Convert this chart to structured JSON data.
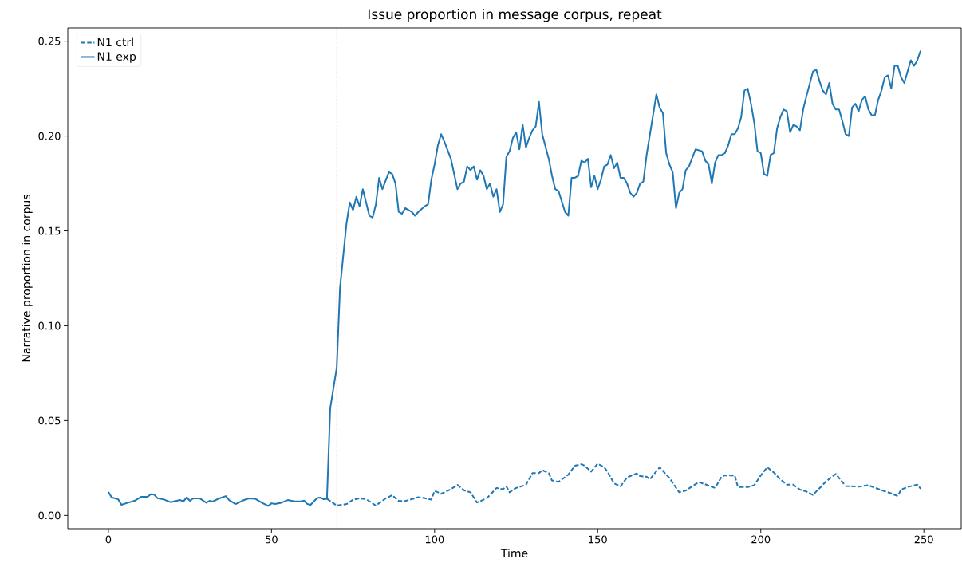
{
  "chart_data": {
    "type": "line",
    "title": "Issue proportion in message corpus, repeat",
    "xlabel": "Time",
    "ylabel": "Narrative proportion in corpus",
    "xlim": [
      -12.45,
      261.45
    ],
    "ylim": [
      -0.007,
      0.257
    ],
    "xticks": [
      0,
      50,
      100,
      150,
      200,
      250
    ],
    "yticks": [
      {
        "value": 0,
        "label": "0.00"
      },
      {
        "value": 0.05,
        "label": "0.05"
      },
      {
        "value": 0.1,
        "label": "0.10"
      },
      {
        "value": 0.15,
        "label": "0.15"
      },
      {
        "value": 0.2,
        "label": "0.20"
      },
      {
        "value": 0.25,
        "label": "0.25"
      }
    ],
    "grid": false,
    "legend": "top left",
    "marker": "none",
    "ref_lines": [
      {
        "axis": "x",
        "value": 70,
        "color": "#ff4040",
        "line_style": "dotted"
      }
    ],
    "series": [
      {
        "name": "N1 ctrl",
        "color": "#1f77b4",
        "line_style": "dashed",
        "x": [
          67,
          70,
          73,
          75,
          77,
          79,
          82,
          85,
          87,
          89,
          91,
          95,
          97,
          99,
          100,
          102,
          105,
          107,
          109,
          111,
          113,
          116,
          119,
          121,
          122,
          123,
          125,
          128,
          130,
          132,
          133,
          135,
          136,
          138,
          141,
          143,
          145,
          146,
          148,
          150,
          152,
          153,
          155,
          157,
          159,
          161,
          162,
          163,
          165,
          166,
          169,
          172,
          175,
          177,
          181,
          186,
          188,
          189,
          192,
          193,
          196,
          198,
          200,
          202,
          204,
          206,
          208,
          210,
          212,
          214,
          216,
          220,
          223,
          226,
          230,
          233,
          237,
          240,
          242,
          243,
          245,
          248,
          249
        ],
        "values": [
          0.0088,
          0.0052,
          0.006,
          0.0083,
          0.009,
          0.0086,
          0.0052,
          0.009,
          0.0107,
          0.0076,
          0.0076,
          0.0096,
          0.0091,
          0.0083,
          0.013,
          0.0114,
          0.0138,
          0.0161,
          0.0133,
          0.0122,
          0.0068,
          0.009,
          0.0145,
          0.0138,
          0.0153,
          0.0122,
          0.0145,
          0.0161,
          0.0223,
          0.0223,
          0.0239,
          0.0223,
          0.0184,
          0.0177,
          0.0215,
          0.0262,
          0.027,
          0.0262,
          0.0231,
          0.0273,
          0.0254,
          0.0231,
          0.0169,
          0.0153,
          0.02,
          0.0215,
          0.0221,
          0.0207,
          0.0204,
          0.019,
          0.0254,
          0.0197,
          0.0122,
          0.0131,
          0.0176,
          0.0145,
          0.0204,
          0.0211,
          0.0211,
          0.015,
          0.015,
          0.0159,
          0.0211,
          0.0254,
          0.0226,
          0.019,
          0.0162,
          0.0162,
          0.0136,
          0.0126,
          0.0108,
          0.0179,
          0.0219,
          0.0155,
          0.0152,
          0.0159,
          0.0133,
          0.0116,
          0.0102,
          0.0136,
          0.015,
          0.0162,
          0.0141
        ]
      },
      {
        "name": "N1 exp",
        "color": "#1f77b4",
        "line_style": "solid",
        "x": [
          0,
          1,
          3,
          4,
          6,
          8,
          10,
          12,
          13,
          14,
          15,
          17,
          19,
          22,
          23,
          24,
          25,
          26,
          28,
          30,
          31,
          32,
          34,
          36,
          37,
          39,
          41,
          43,
          45,
          47,
          49,
          50,
          51,
          53,
          55,
          57,
          59,
          60,
          61,
          62,
          64,
          65,
          66,
          67,
          68,
          70,
          71,
          73,
          74,
          75,
          76,
          77,
          78,
          79,
          80,
          81,
          82,
          83,
          84,
          86,
          87,
          88,
          89,
          90,
          91,
          93,
          94,
          95,
          97,
          98,
          99,
          100,
          101,
          102,
          103,
          105,
          107,
          108,
          109,
          110,
          111,
          112,
          113,
          114,
          115,
          116,
          117,
          118,
          119,
          120,
          121,
          122,
          123,
          124,
          125,
          126,
          127,
          128,
          129,
          130,
          131,
          132,
          133,
          135,
          136,
          137,
          138,
          140,
          141,
          142,
          143,
          144,
          145,
          146,
          147,
          148,
          149,
          150,
          151,
          152,
          153,
          154,
          155,
          156,
          157,
          158,
          159,
          160,
          161,
          162,
          163,
          164,
          165,
          168,
          169,
          170,
          171,
          172,
          173,
          174,
          175,
          176,
          177,
          178,
          180,
          182,
          183,
          184,
          185,
          186,
          187,
          188,
          189,
          190,
          191,
          192,
          193,
          194,
          195,
          196,
          197,
          198,
          199,
          200,
          201,
          202,
          203,
          204,
          205,
          206,
          207,
          208,
          209,
          210,
          211,
          212,
          213,
          214,
          216,
          217,
          218,
          219,
          220,
          221,
          222,
          223,
          224,
          225,
          226,
          227,
          228,
          229,
          230,
          231,
          232,
          233,
          234,
          235,
          236,
          237,
          238,
          239,
          240,
          241,
          242,
          243,
          244,
          246,
          247,
          248,
          249
        ],
        "values": [
          0.0123,
          0.0095,
          0.0085,
          0.0056,
          0.0067,
          0.0077,
          0.0098,
          0.0098,
          0.0112,
          0.011,
          0.0091,
          0.0084,
          0.007,
          0.0081,
          0.0074,
          0.0095,
          0.0077,
          0.009,
          0.009,
          0.0067,
          0.0077,
          0.0073,
          0.009,
          0.0102,
          0.0081,
          0.006,
          0.0077,
          0.009,
          0.0088,
          0.0067,
          0.005,
          0.0064,
          0.006,
          0.0067,
          0.0081,
          0.0074,
          0.0074,
          0.0078,
          0.006,
          0.0056,
          0.0092,
          0.0094,
          0.0085,
          0.0088,
          0.0565,
          0.078,
          0.12,
          0.154,
          0.165,
          0.161,
          0.168,
          0.163,
          0.172,
          0.165,
          0.158,
          0.157,
          0.164,
          0.178,
          0.172,
          0.181,
          0.18,
          0.175,
          0.16,
          0.159,
          0.162,
          0.16,
          0.158,
          0.16,
          0.163,
          0.164,
          0.177,
          0.185,
          0.195,
          0.201,
          0.197,
          0.188,
          0.172,
          0.175,
          0.176,
          0.184,
          0.182,
          0.184,
          0.177,
          0.182,
          0.179,
          0.172,
          0.175,
          0.168,
          0.172,
          0.16,
          0.164,
          0.189,
          0.192,
          0.199,
          0.202,
          0.193,
          0.206,
          0.194,
          0.199,
          0.203,
          0.205,
          0.218,
          0.201,
          0.188,
          0.179,
          0.172,
          0.171,
          0.16,
          0.158,
          0.178,
          0.178,
          0.179,
          0.187,
          0.186,
          0.188,
          0.173,
          0.179,
          0.172,
          0.177,
          0.184,
          0.185,
          0.19,
          0.183,
          0.186,
          0.178,
          0.178,
          0.175,
          0.17,
          0.168,
          0.17,
          0.175,
          0.176,
          0.19,
          0.222,
          0.215,
          0.212,
          0.191,
          0.185,
          0.181,
          0.162,
          0.17,
          0.172,
          0.182,
          0.184,
          0.193,
          0.192,
          0.187,
          0.185,
          0.175,
          0.186,
          0.19,
          0.19,
          0.191,
          0.195,
          0.201,
          0.201,
          0.204,
          0.21,
          0.224,
          0.225,
          0.217,
          0.207,
          0.192,
          0.191,
          0.18,
          0.179,
          0.19,
          0.191,
          0.204,
          0.21,
          0.214,
          0.213,
          0.202,
          0.206,
          0.205,
          0.203,
          0.214,
          0.221,
          0.234,
          0.235,
          0.229,
          0.224,
          0.222,
          0.228,
          0.217,
          0.214,
          0.214,
          0.208,
          0.201,
          0.2,
          0.215,
          0.217,
          0.213,
          0.219,
          0.221,
          0.214,
          0.211,
          0.211,
          0.219,
          0.224,
          0.231,
          0.232,
          0.225,
          0.237,
          0.237,
          0.231,
          0.228,
          0.24,
          0.237,
          0.24,
          0.245
        ]
      }
    ]
  }
}
